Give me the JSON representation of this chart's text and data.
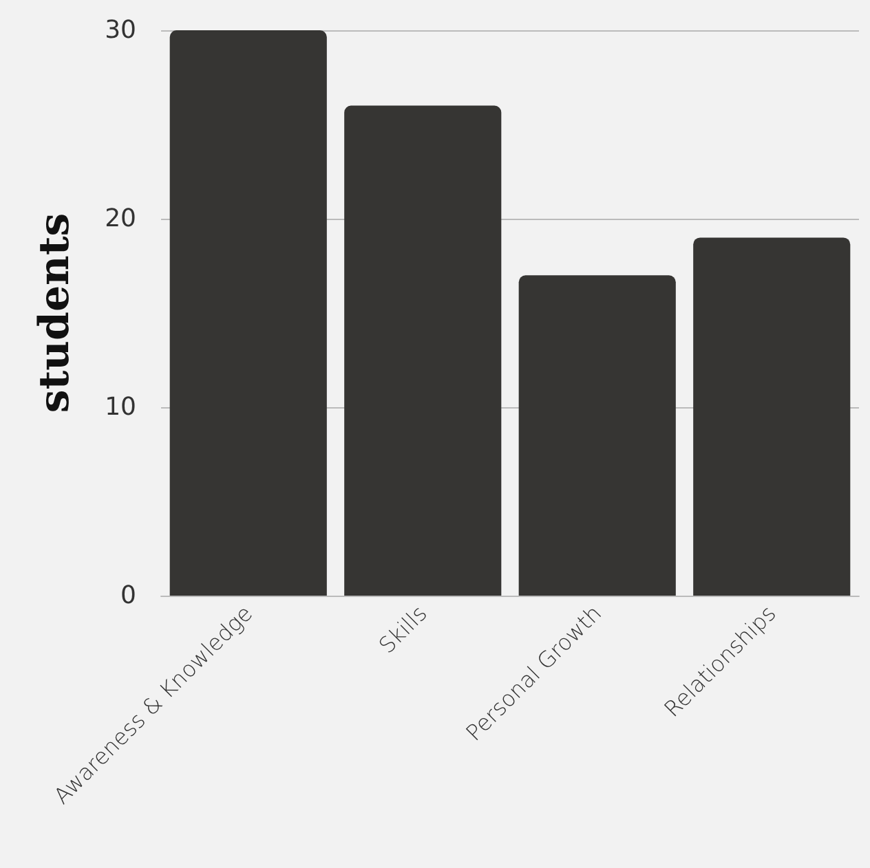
{
  "chart_data": {
    "type": "bar",
    "ylabel": "students",
    "categories": [
      "Awareness & Knowledge",
      "Skills",
      "Personal Growth",
      "Relationships"
    ],
    "values": [
      30,
      26,
      17,
      19
    ],
    "color": "#363533",
    "ylim": [
      0,
      30
    ],
    "yticks": [
      0,
      10,
      20,
      30
    ],
    "grid": "y"
  }
}
